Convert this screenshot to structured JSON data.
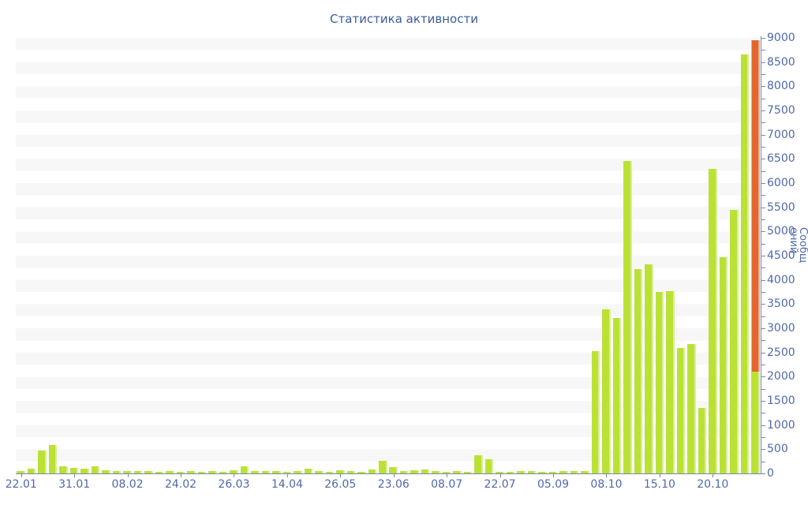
{
  "chart_data": {
    "type": "bar",
    "title": "Статистика активности",
    "xlabel": "",
    "ylabel": "Сообщений",
    "ylabel_lines": [
      "Сообщ",
      "ений"
    ],
    "ylim": [
      0,
      9000
    ],
    "y_major_tick_interval": 500,
    "y_minor_tick_interval": 250,
    "y_tick_labels": [
      "0",
      "500",
      "1000",
      "1500",
      "2000",
      "2500",
      "3000",
      "3500",
      "4000",
      "4500",
      "5000",
      "5500",
      "6000",
      "6500",
      "7000",
      "7500",
      "8000",
      "8500",
      "9000"
    ],
    "x_tick_labels": [
      "22.01",
      "31.01",
      "08.02",
      "24.02",
      "26.03",
      "14.04",
      "26.05",
      "23.06",
      "08.07",
      "22.07",
      "05.09",
      "08.10",
      "15.10",
      "20.10"
    ],
    "x_label_every_n_bars": 5,
    "bar_count": 70,
    "grid": "horizontal alternating stripes every 250 units",
    "legend_position": "none",
    "values": [
      50,
      100,
      480,
      580,
      140,
      120,
      95,
      150,
      60,
      45,
      55,
      45,
      50,
      40,
      45,
      40,
      50,
      40,
      45,
      40,
      65,
      145,
      45,
      45,
      55,
      35,
      50,
      100,
      45,
      30,
      60,
      45,
      35,
      80,
      260,
      130,
      55,
      70,
      80,
      50,
      25,
      45,
      40,
      380,
      290,
      35,
      25,
      45,
      50,
      30,
      25,
      50,
      45,
      55,
      2530,
      3390,
      3210,
      6450,
      4220,
      4320,
      3750,
      3760,
      2590,
      2680,
      1360,
      6300,
      4460,
      5440,
      8660,
      2100
    ],
    "stacked_segment": {
      "index": 69,
      "green_base_value": 2100,
      "orange_value": 6850,
      "stack_total": 8950
    },
    "colors": {
      "bar_green": "#bbe135",
      "bar_green_edge": "#d9ee96",
      "bar_orange": "#e2672f",
      "bar_orange_edge": "#eeab85",
      "title_text": "#3b5c9c",
      "axis_text": "#5069aa",
      "axis_line": "#7588b8",
      "stripe": "#f7f7f7",
      "background": "#ffffff"
    }
  }
}
